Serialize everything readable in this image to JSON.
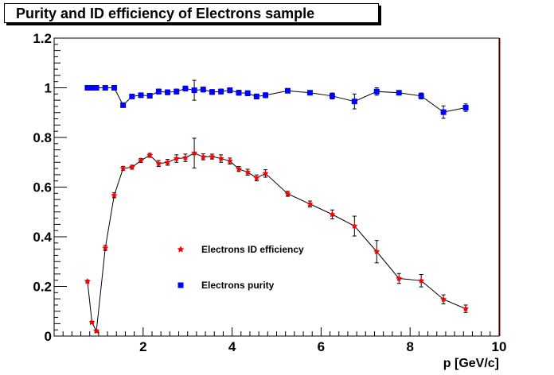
{
  "title": "Purity and ID efficiency of Electrons sample",
  "chart_data": {
    "type": "scatter",
    "title": "Purity and ID efficiency of Electrons sample",
    "xlabel": "p [GeV/c]",
    "ylabel": "",
    "xlim": [
      0,
      10
    ],
    "ylim": [
      0,
      1.2
    ],
    "x_ticks": [
      "2",
      "4",
      "6",
      "8",
      "10"
    ],
    "y_ticks": [
      "0",
      "0.2",
      "0.4",
      "0.6",
      "0.8",
      "1",
      "1.2"
    ],
    "grid": false,
    "legend_position": "center-left",
    "series": [
      {
        "name": "Electrons ID efficiency",
        "color": "#ff0000",
        "marker": "star",
        "points": [
          {
            "x": 0.75,
            "y": 0.22,
            "err": 0.005
          },
          {
            "x": 0.85,
            "y": 0.055,
            "err": 0.005
          },
          {
            "x": 0.95,
            "y": 0.02,
            "err": 0.005
          },
          {
            "x": 1.15,
            "y": 0.355,
            "err": 0.01
          },
          {
            "x": 1.35,
            "y": 0.567,
            "err": 0.01
          },
          {
            "x": 1.55,
            "y": 0.675,
            "err": 0.008
          },
          {
            "x": 1.75,
            "y": 0.68,
            "err": 0.008
          },
          {
            "x": 1.95,
            "y": 0.707,
            "err": 0.008
          },
          {
            "x": 2.15,
            "y": 0.728,
            "err": 0.008
          },
          {
            "x": 2.35,
            "y": 0.695,
            "err": 0.012
          },
          {
            "x": 2.55,
            "y": 0.7,
            "err": 0.012
          },
          {
            "x": 2.75,
            "y": 0.715,
            "err": 0.015
          },
          {
            "x": 2.95,
            "y": 0.718,
            "err": 0.015
          },
          {
            "x": 3.15,
            "y": 0.737,
            "err": 0.06
          },
          {
            "x": 3.35,
            "y": 0.722,
            "err": 0.012
          },
          {
            "x": 3.55,
            "y": 0.723,
            "err": 0.01
          },
          {
            "x": 3.75,
            "y": 0.715,
            "err": 0.015
          },
          {
            "x": 3.95,
            "y": 0.705,
            "err": 0.012
          },
          {
            "x": 4.15,
            "y": 0.673,
            "err": 0.01
          },
          {
            "x": 4.35,
            "y": 0.66,
            "err": 0.012
          },
          {
            "x": 4.55,
            "y": 0.637,
            "err": 0.012
          },
          {
            "x": 4.75,
            "y": 0.655,
            "err": 0.015
          },
          {
            "x": 5.25,
            "y": 0.573,
            "err": 0.01
          },
          {
            "x": 5.75,
            "y": 0.532,
            "err": 0.012
          },
          {
            "x": 6.25,
            "y": 0.49,
            "err": 0.018
          },
          {
            "x": 6.75,
            "y": 0.443,
            "err": 0.04
          },
          {
            "x": 7.25,
            "y": 0.34,
            "err": 0.045
          },
          {
            "x": 7.75,
            "y": 0.232,
            "err": 0.02
          },
          {
            "x": 8.25,
            "y": 0.223,
            "err": 0.025
          },
          {
            "x": 8.75,
            "y": 0.148,
            "err": 0.018
          },
          {
            "x": 9.25,
            "y": 0.11,
            "err": 0.015
          }
        ]
      },
      {
        "name": "Electrons purity",
        "color": "#0000ff",
        "marker": "square",
        "points": [
          {
            "x": 0.75,
            "y": 1.0,
            "err": 0.004
          },
          {
            "x": 0.85,
            "y": 1.0,
            "err": 0.004
          },
          {
            "x": 0.95,
            "y": 1.0,
            "err": 0.004
          },
          {
            "x": 1.15,
            "y": 1.0,
            "err": 0.004
          },
          {
            "x": 1.35,
            "y": 1.0,
            "err": 0.004
          },
          {
            "x": 1.55,
            "y": 0.93,
            "err": 0.008
          },
          {
            "x": 1.75,
            "y": 0.965,
            "err": 0.008
          },
          {
            "x": 1.95,
            "y": 0.97,
            "err": 0.008
          },
          {
            "x": 2.15,
            "y": 0.968,
            "err": 0.008
          },
          {
            "x": 2.35,
            "y": 0.985,
            "err": 0.01
          },
          {
            "x": 2.55,
            "y": 0.982,
            "err": 0.01
          },
          {
            "x": 2.75,
            "y": 0.985,
            "err": 0.01
          },
          {
            "x": 2.95,
            "y": 0.997,
            "err": 0.01
          },
          {
            "x": 3.15,
            "y": 0.99,
            "err": 0.04
          },
          {
            "x": 3.35,
            "y": 0.993,
            "err": 0.01
          },
          {
            "x": 3.55,
            "y": 0.983,
            "err": 0.01
          },
          {
            "x": 3.75,
            "y": 0.985,
            "err": 0.01
          },
          {
            "x": 3.95,
            "y": 0.99,
            "err": 0.01
          },
          {
            "x": 4.15,
            "y": 0.98,
            "err": 0.01
          },
          {
            "x": 4.35,
            "y": 0.978,
            "err": 0.01
          },
          {
            "x": 4.55,
            "y": 0.965,
            "err": 0.01
          },
          {
            "x": 4.75,
            "y": 0.97,
            "err": 0.01
          },
          {
            "x": 5.25,
            "y": 0.988,
            "err": 0.008
          },
          {
            "x": 5.75,
            "y": 0.98,
            "err": 0.008
          },
          {
            "x": 6.25,
            "y": 0.967,
            "err": 0.012
          },
          {
            "x": 6.75,
            "y": 0.945,
            "err": 0.03
          },
          {
            "x": 7.25,
            "y": 0.985,
            "err": 0.015
          },
          {
            "x": 7.75,
            "y": 0.98,
            "err": 0.008
          },
          {
            "x": 8.25,
            "y": 0.967,
            "err": 0.012
          },
          {
            "x": 8.75,
            "y": 0.902,
            "err": 0.025
          },
          {
            "x": 9.25,
            "y": 0.92,
            "err": 0.015
          }
        ]
      }
    ]
  }
}
